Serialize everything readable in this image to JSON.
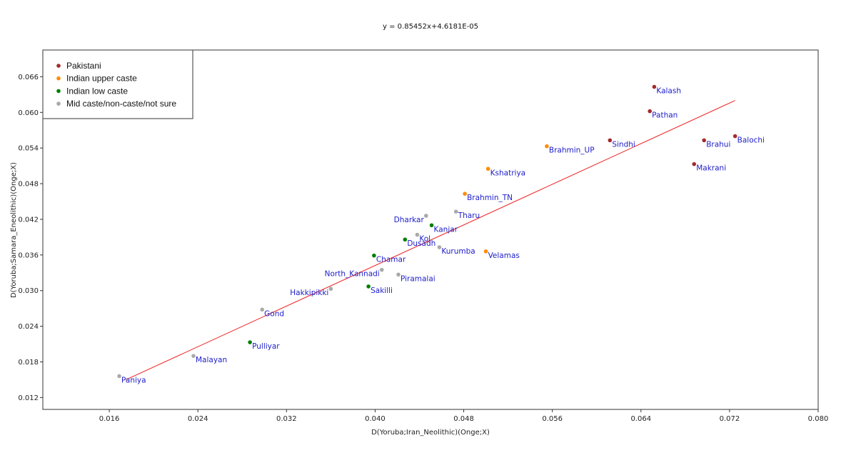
{
  "chart_data": {
    "type": "scatter",
    "title": "y = 0.85452x+4.6181E-05",
    "xlabel": "D(Yoruba;Iran_Neolithic)(Onge;X)",
    "ylabel": "D(Yoruba;Samara_Eneolithic)(Onge;X)",
    "xlim": [
      0.01,
      0.08
    ],
    "ylim": [
      0.01,
      0.0705
    ],
    "x_ticks": [
      "0.016",
      "0.024",
      "0.032",
      "0.040",
      "0.048",
      "0.056",
      "0.064",
      "0.072",
      "0.080"
    ],
    "y_ticks": [
      "0.012",
      "0.018",
      "0.024",
      "0.030",
      "0.036",
      "0.042",
      "0.048",
      "0.054",
      "0.060",
      "0.066"
    ],
    "grid": false,
    "legend_position": "top-left",
    "trendline": {
      "slope": 0.85452,
      "intercept": 4.6181e-05,
      "x_range": [
        0.0175,
        0.0725
      ],
      "color": "#ee1c1c"
    },
    "series": [
      {
        "name": "Pakistani",
        "color": "#a52a2a",
        "points": [
          {
            "label": "Kalash",
            "x": 0.0652,
            "y": 0.0643
          },
          {
            "label": "Pathan",
            "x": 0.0648,
            "y": 0.0602
          },
          {
            "label": "Sindhi",
            "x": 0.0612,
            "y": 0.0553
          },
          {
            "label": "Balochi",
            "x": 0.0725,
            "y": 0.056
          },
          {
            "label": "Brahui",
            "x": 0.0697,
            "y": 0.0553
          },
          {
            "label": "Makrani",
            "x": 0.0688,
            "y": 0.0513
          }
        ]
      },
      {
        "name": "Indian upper caste",
        "color": "#ff8c00",
        "points": [
          {
            "label": "Brahmin_UP",
            "x": 0.0555,
            "y": 0.0543
          },
          {
            "label": "Kshatriya",
            "x": 0.0502,
            "y": 0.0505
          },
          {
            "label": "Brahmin_TN",
            "x": 0.0481,
            "y": 0.0463
          },
          {
            "label": "Velamas",
            "x": 0.05,
            "y": 0.0366
          }
        ]
      },
      {
        "name": "Indian low caste",
        "color": "#008000",
        "points": [
          {
            "label": "Kanjar",
            "x": 0.0451,
            "y": 0.041
          },
          {
            "label": "Dusadh",
            "x": 0.0427,
            "y": 0.0386
          },
          {
            "label": "Chamar",
            "x": 0.0399,
            "y": 0.0359
          },
          {
            "label": "Sakilli",
            "x": 0.0394,
            "y": 0.0307
          },
          {
            "label": "Pulliyar",
            "x": 0.0287,
            "y": 0.0213
          }
        ]
      },
      {
        "name": "Mid caste/non-caste/not sure",
        "color": "#a9a9a9",
        "points": [
          {
            "label": "Tharu",
            "x": 0.0473,
            "y": 0.0433
          },
          {
            "label": "Dharkar",
            "x": 0.0446,
            "y": 0.0426
          },
          {
            "label": "Kol",
            "x": 0.0438,
            "y": 0.0394
          },
          {
            "label": "Kurumba",
            "x": 0.0458,
            "y": 0.0373
          },
          {
            "label": "North_Kannadi",
            "x": 0.0406,
            "y": 0.0335
          },
          {
            "label": "Piramalai",
            "x": 0.0421,
            "y": 0.0327
          },
          {
            "label": "Hakkipikki",
            "x": 0.036,
            "y": 0.0303
          },
          {
            "label": "Gond",
            "x": 0.0298,
            "y": 0.0268
          },
          {
            "label": "Malayan",
            "x": 0.0236,
            "y": 0.019
          },
          {
            "label": "Paniya",
            "x": 0.0169,
            "y": 0.0156
          }
        ]
      }
    ]
  }
}
